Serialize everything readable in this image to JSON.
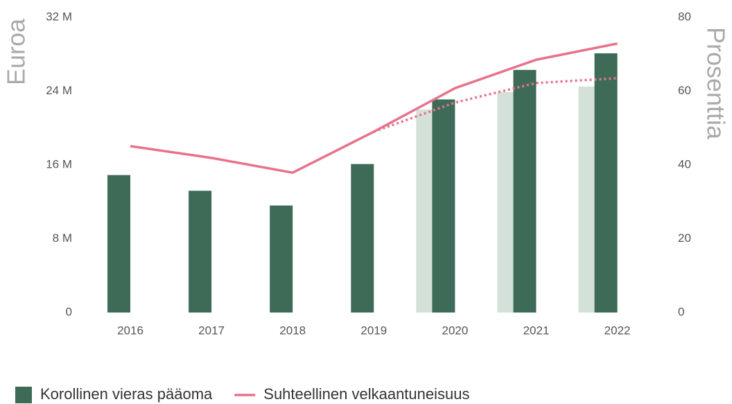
{
  "chart_data": {
    "type": "bar",
    "ylabel": "Euroa",
    "y2label": "Prosenttia",
    "categories": [
      "2016",
      "2017",
      "2018",
      "2019",
      "2020",
      "2021",
      "2022"
    ],
    "series": [
      {
        "color": "#d4e1d9",
        "values": [
          null,
          null,
          null,
          null,
          22.0,
          23.9,
          24.5
        ],
        "kind": "bar",
        "offset": "back"
      },
      {
        "name": "Korollinen vieras pääoma",
        "color": "#3e6b58",
        "values": [
          14.9,
          13.2,
          11.6,
          16.1,
          23.1,
          26.3,
          28.1
        ],
        "kind": "bar",
        "offset": "front"
      },
      {
        "name": "Suhteellinen velkaantuneisuus",
        "color": "#e8728a",
        "values": [
          45.1,
          41.9,
          37.9,
          49.0,
          60.8,
          68.5,
          72.9
        ],
        "kind": "line",
        "axis": "y2"
      },
      {
        "color": "#e8728a",
        "values": [
          null,
          null,
          null,
          49.0,
          56.9,
          62.2,
          63.5
        ],
        "kind": "line",
        "axis": "y2",
        "dashed": true
      }
    ],
    "ylim": [
      0,
      32
    ],
    "yticks": [
      0,
      {
        "value": 8,
        "label": "8 M"
      },
      {
        "value": 16,
        "label": "16 M"
      },
      {
        "value": 24,
        "label": "24 M"
      },
      {
        "value": 32,
        "label": "32 M"
      }
    ],
    "y2lim": [
      0,
      80
    ],
    "y2ticks": [
      0,
      20,
      40,
      60,
      80
    ],
    "grid": false
  }
}
